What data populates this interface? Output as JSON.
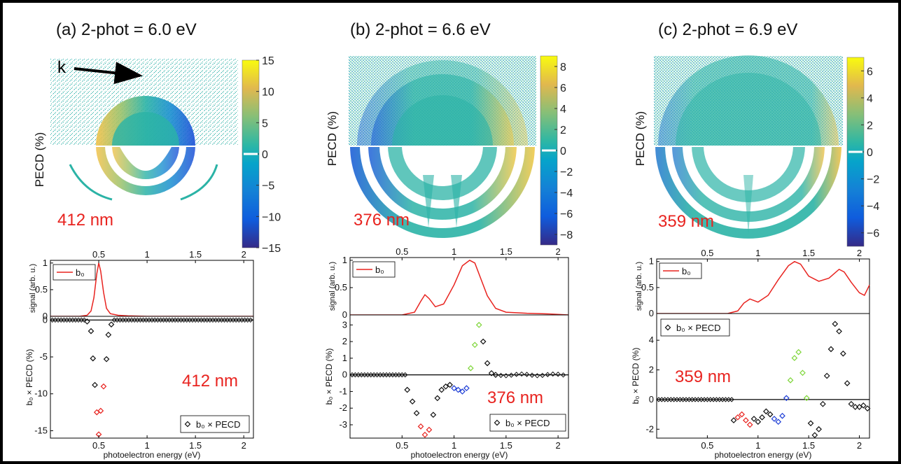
{
  "panels": [
    {
      "title": "(a)  2-phot = 6.0 eV",
      "image": {
        "ylabel": "PECD (%)",
        "label": "412 nm",
        "k_label": "k",
        "colorbar": {
          "min": -15,
          "max": 15,
          "ticks": [
            15,
            10,
            5,
            0,
            -5,
            -10,
            -15
          ]
        }
      },
      "signal_plot": {
        "ylabel": "signal (arb. u.)",
        "legend": "b₀",
        "xticks_top": [
          "0.5",
          "1",
          "1.5",
          "2"
        ],
        "yticks": [
          "0",
          "0.5",
          "1"
        ]
      },
      "pecd_plot": {
        "ylabel": "b₀ × PECD (%)",
        "legend": "b₀ × PECD",
        "label": "412 nm",
        "xlabel": "photoelectron energy (eV)",
        "xticks": [
          "0.5",
          "1",
          "1.5",
          "2"
        ],
        "yticks": [
          "0",
          "-5",
          "-10",
          "-15"
        ]
      }
    },
    {
      "title": "(b)  2-phot = 6.6 eV",
      "image": {
        "ylabel": "PECD (%)",
        "label": "376 nm",
        "k_label": "",
        "colorbar": {
          "min": -9,
          "max": 9,
          "ticks": [
            8,
            6,
            4,
            2,
            0,
            -2,
            -4,
            -6,
            -8
          ]
        }
      },
      "signal_plot": {
        "ylabel": "signal (arb. u.)",
        "legend": "b₀",
        "xticks_top": [
          "0.5",
          "1",
          "1.5",
          "2"
        ],
        "yticks": [
          "0",
          "0.5",
          "1"
        ]
      },
      "pecd_plot": {
        "ylabel": "b₀ × PECD (%)",
        "legend": "b₀ × PECD",
        "label": "376 nm",
        "xlabel": "photoelectron energy (eV)",
        "xticks": [
          "0.5",
          "1",
          "1.5",
          "2"
        ],
        "yticks": [
          "3",
          "2",
          "1",
          "0",
          "-1",
          "-2",
          "-3"
        ]
      }
    },
    {
      "title": "(c)  2-phot = 6.9 eV",
      "image": {
        "ylabel": "PECD (%)",
        "label": "359 nm",
        "k_label": "",
        "colorbar": {
          "min": -7,
          "max": 7,
          "ticks": [
            6,
            4,
            2,
            0,
            -2,
            -4,
            -6
          ]
        }
      },
      "signal_plot": {
        "ylabel": "signal (arb. u.)",
        "legend": "b₀",
        "xticks_top": [
          "0.5",
          "1",
          "1.5",
          "2"
        ],
        "yticks": [
          "0",
          "0.5",
          "1"
        ]
      },
      "pecd_plot": {
        "ylabel": "b₀ × PECD (%)",
        "legend": "b₀ × PECD",
        "label": "359 nm",
        "xlabel": "photoelectron energy (eV)",
        "xticks": [
          "0.5",
          "1",
          "1.5",
          "2"
        ],
        "yticks": [
          "4",
          "2",
          "0",
          "-2"
        ]
      }
    }
  ],
  "colors": {
    "signal_line": "#e8231f",
    "label_red": "#e8231f",
    "marker_black": "#111111",
    "marker_red": "#e8231f",
    "marker_blue": "#1f3fd6",
    "marker_green": "#7fd63a",
    "frame": "#000000"
  },
  "chart_data": [
    {
      "type": "line",
      "panel": "a",
      "series": [
        {
          "name": "b₀",
          "x": [
            0.0,
            0.3,
            0.38,
            0.42,
            0.45,
            0.48,
            0.5,
            0.52,
            0.55,
            0.58,
            0.62,
            0.7,
            0.8,
            1.0,
            1.5,
            2.1
          ],
          "y": [
            0,
            0,
            0.02,
            0.1,
            0.35,
            0.8,
            1.0,
            0.85,
            0.45,
            0.15,
            0.05,
            0.02,
            0.01,
            0,
            0,
            0
          ]
        }
      ],
      "xlim": [
        0,
        2.1
      ],
      "ylim": [
        0,
        1.05
      ]
    },
    {
      "type": "scatter",
      "panel": "a",
      "series": [
        {
          "name": "b₀ × PECD",
          "x": [
            0.38,
            0.42,
            0.44,
            0.46,
            0.48,
            0.5,
            0.52,
            0.55,
            0.58,
            0.6,
            0.63
          ],
          "y": [
            -0.2,
            -1.5,
            -5.2,
            -8.8,
            -12.5,
            -15.5,
            -12.3,
            -9.0,
            -5.3,
            -2.0,
            -0.6
          ],
          "colors": [
            "black",
            "black",
            "black",
            "black",
            "red",
            "red",
            "red",
            "red",
            "black",
            "black",
            "black"
          ]
        }
      ],
      "xlim": [
        0,
        2.1
      ],
      "ylim": [
        -16,
        0.5
      ]
    },
    {
      "type": "line",
      "panel": "b",
      "series": [
        {
          "name": "b₀",
          "x": [
            0.0,
            0.5,
            0.62,
            0.68,
            0.72,
            0.76,
            0.82,
            0.9,
            1.0,
            1.08,
            1.15,
            1.2,
            1.25,
            1.32,
            1.4,
            1.5,
            1.7,
            1.9,
            2.1
          ],
          "y": [
            0,
            0,
            0.05,
            0.25,
            0.37,
            0.3,
            0.15,
            0.2,
            0.55,
            0.9,
            1.0,
            0.95,
            0.7,
            0.35,
            0.12,
            0.05,
            0.03,
            0.02,
            0
          ]
        }
      ],
      "xlim": [
        0,
        2.1
      ],
      "ylim": [
        0,
        1.05
      ]
    },
    {
      "type": "scatter",
      "panel": "b",
      "series": [
        {
          "name": "b₀ × PECD",
          "x": [
            0.55,
            0.6,
            0.64,
            0.68,
            0.72,
            0.76,
            0.8,
            0.84,
            0.88,
            0.92,
            0.96,
            1.0,
            1.04,
            1.08,
            1.12,
            1.16,
            1.2,
            1.24,
            1.28,
            1.32,
            1.36,
            1.4
          ],
          "y": [
            -0.9,
            -1.6,
            -2.3,
            -3.1,
            -3.6,
            -3.3,
            -2.4,
            -1.4,
            -0.9,
            -0.7,
            -0.6,
            -0.8,
            -0.9,
            -1.0,
            -0.8,
            0.4,
            1.8,
            3.0,
            2.0,
            0.7,
            0.1,
            0.0
          ],
          "colors": [
            "black",
            "black",
            "black",
            "red",
            "red",
            "red",
            "black",
            "black",
            "black",
            "black",
            "black",
            "blue",
            "blue",
            "blue",
            "blue",
            "green",
            "green",
            "green",
            "black",
            "black",
            "black",
            "black"
          ]
        }
      ],
      "xlim": [
        0,
        2.1
      ],
      "ylim": [
        -3.8,
        3.6
      ]
    },
    {
      "type": "line",
      "panel": "c",
      "series": [
        {
          "name": "b₀",
          "x": [
            0.0,
            0.7,
            0.8,
            0.86,
            0.92,
            1.0,
            1.1,
            1.2,
            1.3,
            1.36,
            1.42,
            1.5,
            1.6,
            1.7,
            1.8,
            1.85,
            1.92,
            2.0,
            2.05,
            2.1
          ],
          "y": [
            0,
            0,
            0.05,
            0.2,
            0.28,
            0.22,
            0.35,
            0.65,
            0.92,
            1.0,
            0.95,
            0.72,
            0.62,
            0.68,
            0.85,
            0.8,
            0.6,
            0.4,
            0.35,
            0.55
          ]
        }
      ],
      "xlim": [
        0,
        2.1
      ],
      "ylim": [
        0,
        1.05
      ]
    },
    {
      "type": "scatter",
      "panel": "c",
      "series": [
        {
          "name": "b₀ × PECD",
          "x": [
            0.76,
            0.8,
            0.84,
            0.88,
            0.92,
            0.96,
            1.0,
            1.04,
            1.08,
            1.12,
            1.16,
            1.2,
            1.24,
            1.28,
            1.32,
            1.36,
            1.4,
            1.44,
            1.48,
            1.52,
            1.56,
            1.6,
            1.64,
            1.68,
            1.72,
            1.76,
            1.8,
            1.84,
            1.88,
            1.92,
            1.96,
            2.0,
            2.04,
            2.08
          ],
          "y": [
            -1.4,
            -1.2,
            -1.0,
            -1.4,
            -1.7,
            -1.3,
            -1.5,
            -1.2,
            -0.8,
            -1.0,
            -1.3,
            -1.5,
            -1.1,
            0.1,
            1.3,
            2.8,
            3.2,
            1.8,
            0.1,
            -1.6,
            -2.4,
            -2.0,
            -0.3,
            1.6,
            3.4,
            5.1,
            4.6,
            3.1,
            1.1,
            -0.3,
            -0.5,
            -0.5,
            -0.4,
            -0.6
          ],
          "colors": [
            "black",
            "red",
            "red",
            "red",
            "red",
            "black",
            "black",
            "black",
            "black",
            "black",
            "blue",
            "blue",
            "blue",
            "blue",
            "green",
            "green",
            "green",
            "green",
            "green",
            "black",
            "black",
            "black",
            "black",
            "black",
            "black",
            "black",
            "black",
            "black",
            "black",
            "black",
            "black",
            "black",
            "black",
            "black"
          ]
        }
      ],
      "xlim": [
        0,
        2.1
      ],
      "ylim": [
        -2.6,
        5.8
      ]
    }
  ]
}
